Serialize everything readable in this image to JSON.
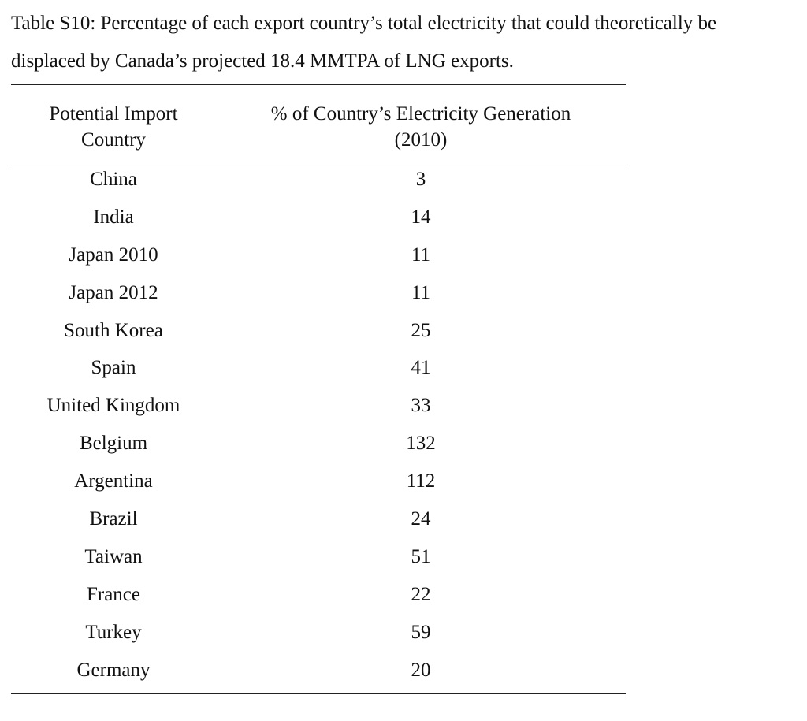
{
  "caption": {
    "line1": "Table S10: Percentage of each export country’s total electricity that could theoretically be",
    "line2": "displaced by Canada’s projected 18.4 MMTPA of LNG exports."
  },
  "table": {
    "headers": {
      "col1_line1": "Potential Import",
      "col1_line2": "Country",
      "col2_line1": "% of Country’s Electricity Generation",
      "col2_line2": "(2010)"
    },
    "rows": [
      {
        "country": "China",
        "percent": "3"
      },
      {
        "country": "India",
        "percent": "14"
      },
      {
        "country": "Japan 2010",
        "percent": "11"
      },
      {
        "country": "Japan 2012",
        "percent": "11"
      },
      {
        "country": "South Korea",
        "percent": "25"
      },
      {
        "country": "Spain",
        "percent": "41"
      },
      {
        "country": "United Kingdom",
        "percent": "33"
      },
      {
        "country": "Belgium",
        "percent": "132"
      },
      {
        "country": "Argentina",
        "percent": "112"
      },
      {
        "country": "Brazil",
        "percent": "24"
      },
      {
        "country": "Taiwan",
        "percent": "51"
      },
      {
        "country": "France",
        "percent": "22"
      },
      {
        "country": "Turkey",
        "percent": "59"
      },
      {
        "country": "Germany",
        "percent": "20"
      }
    ]
  }
}
